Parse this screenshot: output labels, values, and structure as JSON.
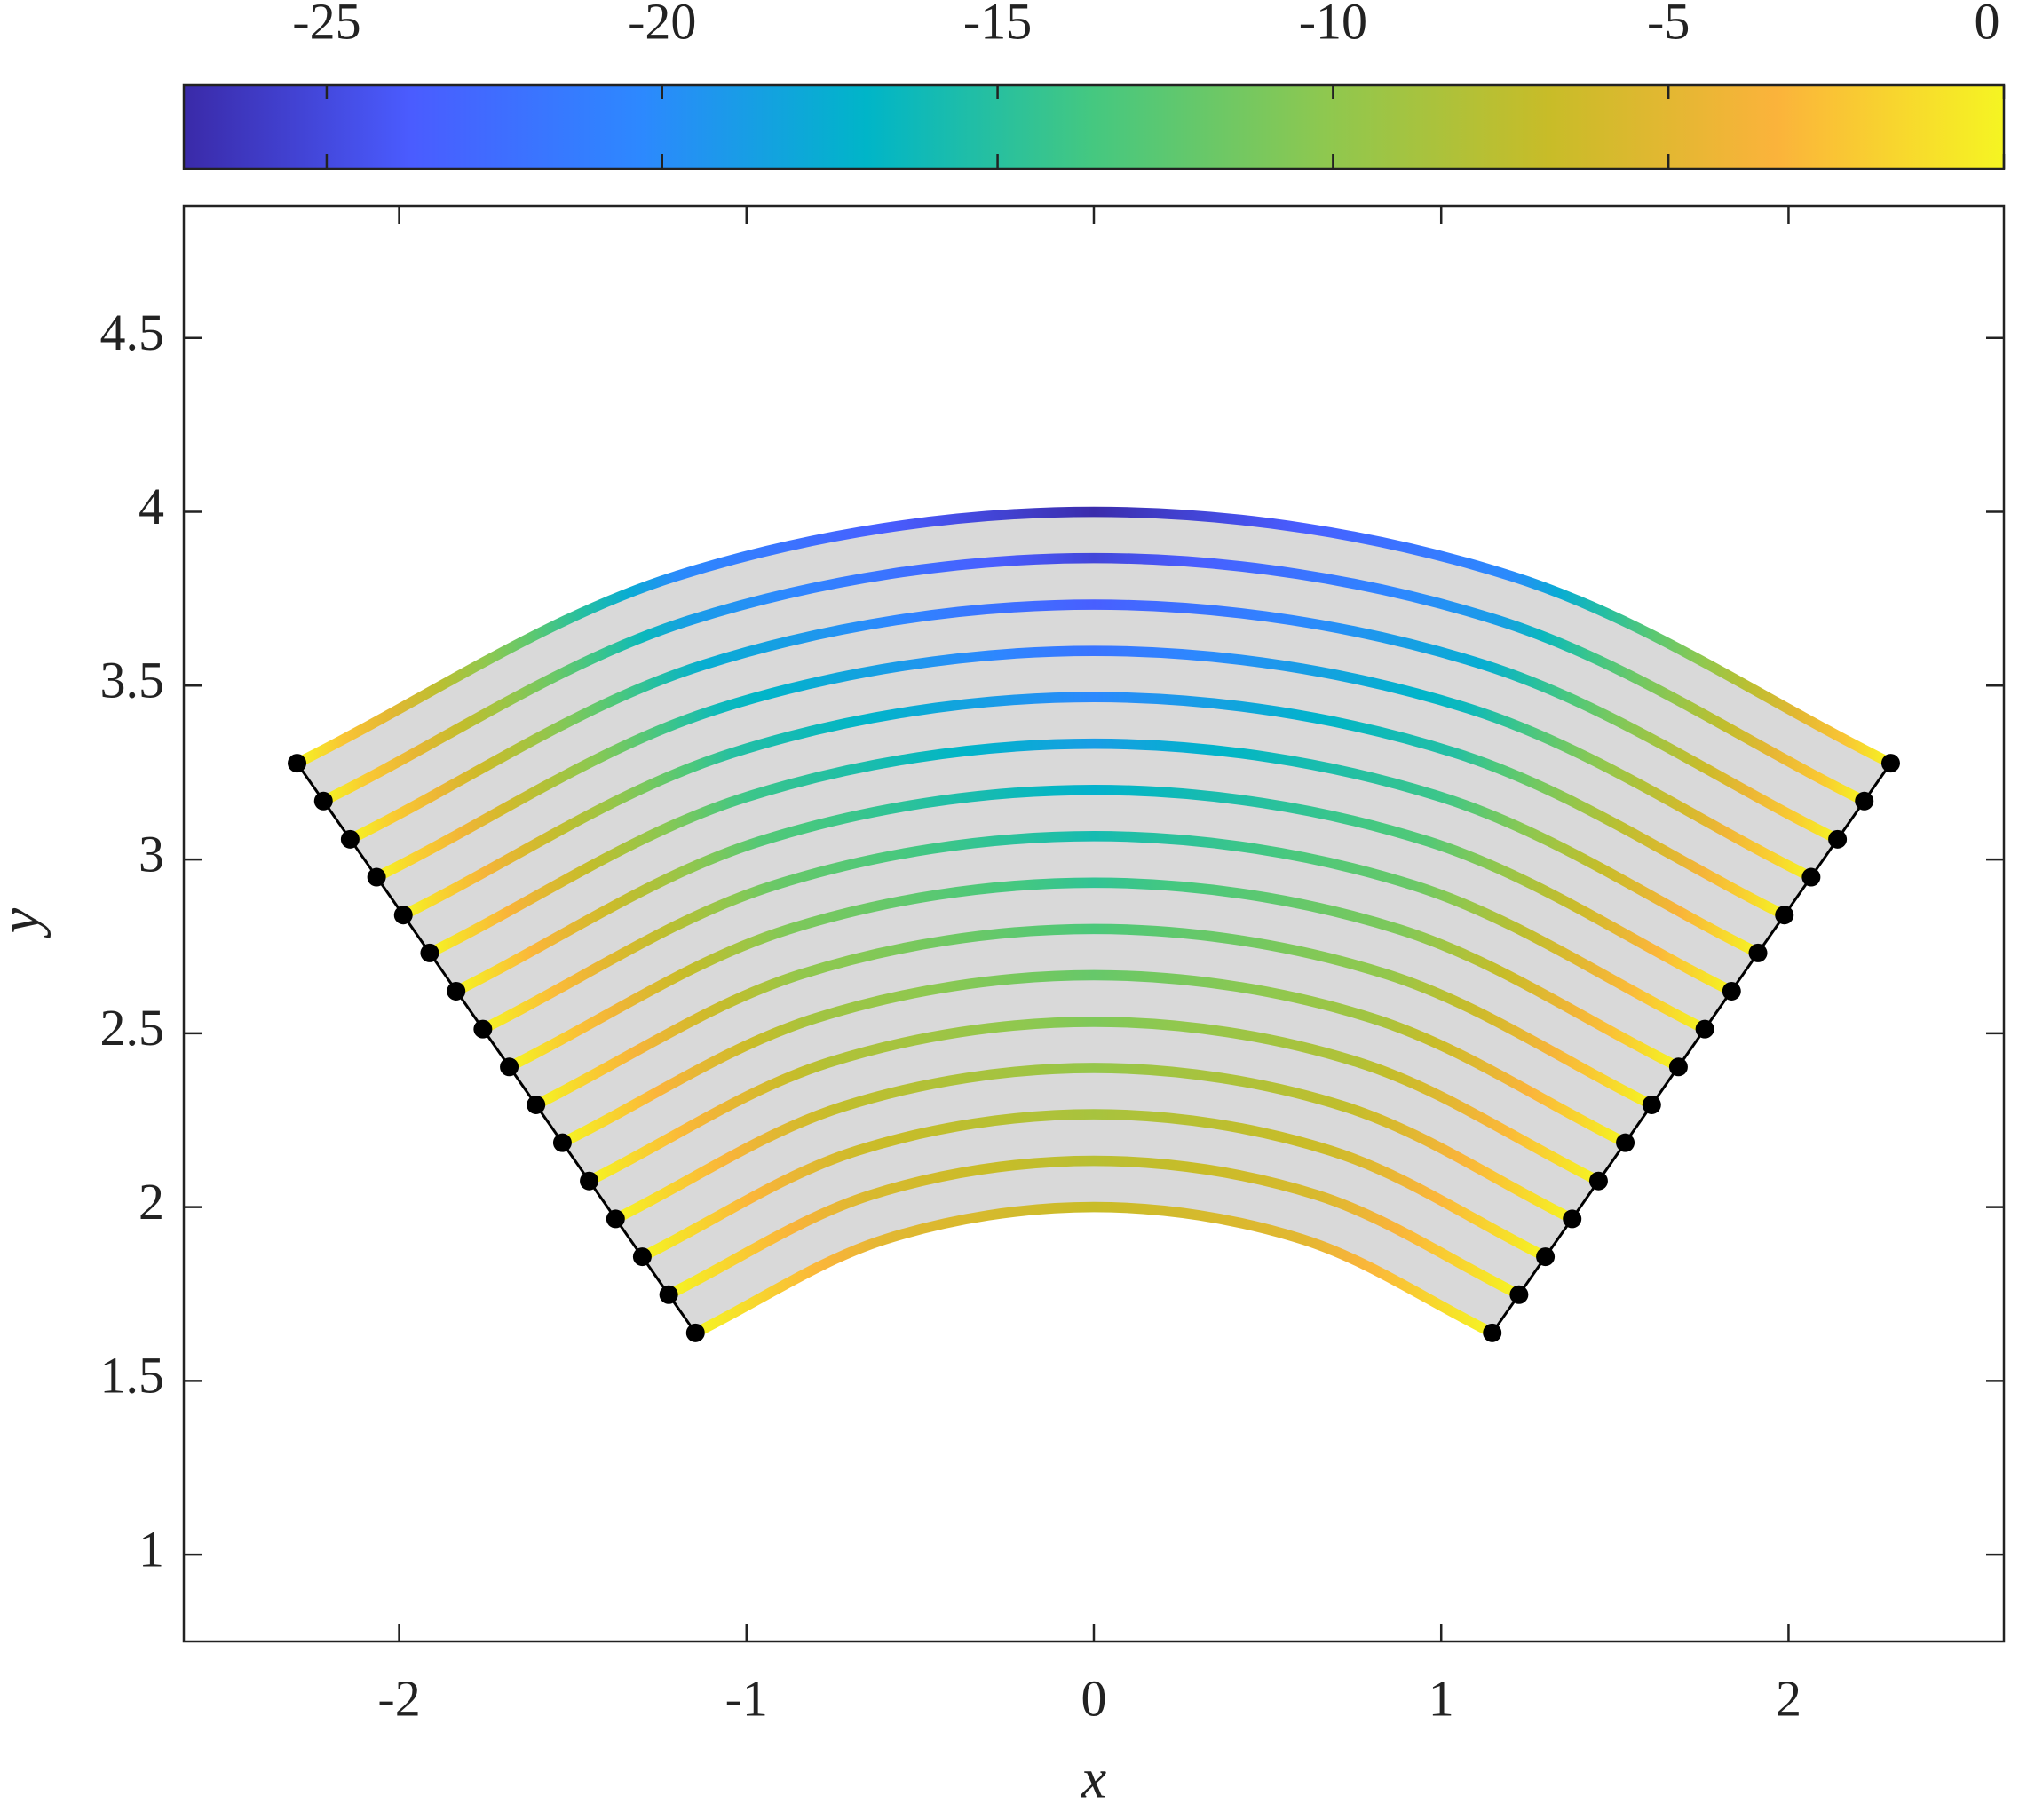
{
  "chart_data": {
    "type": "line",
    "xlabel": "x",
    "ylabel": "y",
    "xlim": [
      -2.62,
      2.62
    ],
    "ylim": [
      0.75,
      4.88
    ],
    "xticks": [
      -2,
      -1,
      0,
      1,
      2
    ],
    "yticks": [
      1,
      1.5,
      2,
      2.5,
      3,
      3.5,
      4,
      4.5
    ],
    "fill_color": "#d9d9d9",
    "marker_color": "#000000",
    "colorbar": {
      "clim": [
        -27.13,
        0
      ],
      "ticks": [
        -25,
        -20,
        -15,
        -10,
        -5,
        0
      ],
      "colormap": [
        "#3a2aa8",
        "#4a5cff",
        "#2d88ff",
        "#00b5c8",
        "#45c880",
        "#8dc850",
        "#c8bc28",
        "#fbb33b",
        "#f5f522"
      ]
    },
    "series": [
      {
        "x": [
          -1.147,
          -0.601,
          0,
          0.601,
          1.147
        ],
        "y": [
          1.638,
          1.907,
          2,
          1.907,
          1.638
        ],
        "c": [
          0,
          -5.03,
          -6.75,
          -5.03,
          0
        ]
      },
      {
        "x": [
          -1.224,
          -0.641,
          0,
          0.641,
          1.224
        ],
        "y": [
          1.748,
          2.035,
          2.133,
          2.035,
          1.748
        ],
        "c": [
          0,
          -5.72,
          -7.68,
          -5.72,
          0
        ]
      },
      {
        "x": [
          -1.3,
          -0.682,
          0,
          0.682,
          1.3
        ],
        "y": [
          1.857,
          2.162,
          2.267,
          2.162,
          1.857
        ],
        "c": [
          0,
          -6.46,
          -8.67,
          -6.46,
          0
        ]
      },
      {
        "x": [
          -1.377,
          -0.722,
          0,
          0.722,
          1.377
        ],
        "y": [
          1.966,
          2.289,
          2.4,
          2.289,
          1.966
        ],
        "c": [
          0,
          -7.24,
          -9.72,
          -7.24,
          0
        ]
      },
      {
        "x": [
          -1.453,
          -0.762,
          0,
          0.762,
          1.453
        ],
        "y": [
          2.075,
          2.416,
          2.533,
          2.416,
          2.075
        ],
        "c": [
          0,
          -8.07,
          -10.83,
          -8.07,
          0
        ]
      },
      {
        "x": [
          -1.53,
          -0.802,
          0,
          0.802,
          1.53
        ],
        "y": [
          2.185,
          2.543,
          2.667,
          2.543,
          2.185
        ],
        "c": [
          0,
          -8.94,
          -12,
          -8.94,
          0
        ]
      },
      {
        "x": [
          -1.606,
          -0.842,
          0,
          0.842,
          1.606
        ],
        "y": [
          2.294,
          2.67,
          2.8,
          2.67,
          2.294
        ],
        "c": [
          0,
          -9.86,
          -13.23,
          -9.86,
          0
        ]
      },
      {
        "x": [
          -1.683,
          -0.882,
          0,
          0.882,
          1.683
        ],
        "y": [
          2.403,
          2.798,
          2.933,
          2.798,
          2.403
        ],
        "c": [
          0,
          -10.82,
          -14.52,
          -10.82,
          0
        ]
      },
      {
        "x": [
          -1.759,
          -0.922,
          0,
          0.922,
          1.759
        ],
        "y": [
          2.512,
          2.925,
          3.067,
          2.925,
          2.512
        ],
        "c": [
          0,
          -11.82,
          -15.87,
          -11.82,
          0
        ]
      },
      {
        "x": [
          -1.836,
          -0.962,
          0,
          0.962,
          1.836
        ],
        "y": [
          2.621,
          3.052,
          3.2,
          3.052,
          2.621
        ],
        "c": [
          0,
          -12.87,
          -17.28,
          -12.87,
          0
        ]
      },
      {
        "x": [
          -1.912,
          -1.002,
          0,
          1.002,
          1.912
        ],
        "y": [
          2.731,
          3.179,
          3.333,
          3.179,
          2.731
        ],
        "c": [
          0,
          -13.97,
          -18.75,
          -13.97,
          0
        ]
      },
      {
        "x": [
          -1.988,
          -1.042,
          0,
          1.042,
          1.988
        ],
        "y": [
          2.84,
          3.306,
          3.467,
          3.306,
          2.84
        ],
        "c": [
          0,
          -15.11,
          -20.28,
          -15.11,
          0
        ]
      },
      {
        "x": [
          -2.065,
          -1.083,
          0,
          1.083,
          2.065
        ],
        "y": [
          2.949,
          3.433,
          3.6,
          3.433,
          2.949
        ],
        "c": [
          0,
          -16.29,
          -21.87,
          -16.29,
          0
        ]
      },
      {
        "x": [
          -2.141,
          -1.123,
          0,
          1.123,
          2.141
        ],
        "y": [
          3.058,
          3.56,
          3.733,
          3.56,
          3.058
        ],
        "c": [
          0,
          -17.52,
          -23.52,
          -17.52,
          0
        ]
      },
      {
        "x": [
          -2.218,
          -1.163,
          0,
          1.163,
          2.218
        ],
        "y": [
          3.168,
          3.688,
          3.867,
          3.688,
          3.168
        ],
        "c": [
          0,
          -18.8,
          -25.23,
          -18.8,
          0
        ]
      },
      {
        "x": [
          -2.294,
          -1.203,
          0,
          1.203,
          2.294
        ],
        "y": [
          3.277,
          3.815,
          4,
          3.815,
          3.277
        ],
        "c": [
          0,
          -20.12,
          -27,
          -20.12,
          0
        ]
      }
    ]
  }
}
